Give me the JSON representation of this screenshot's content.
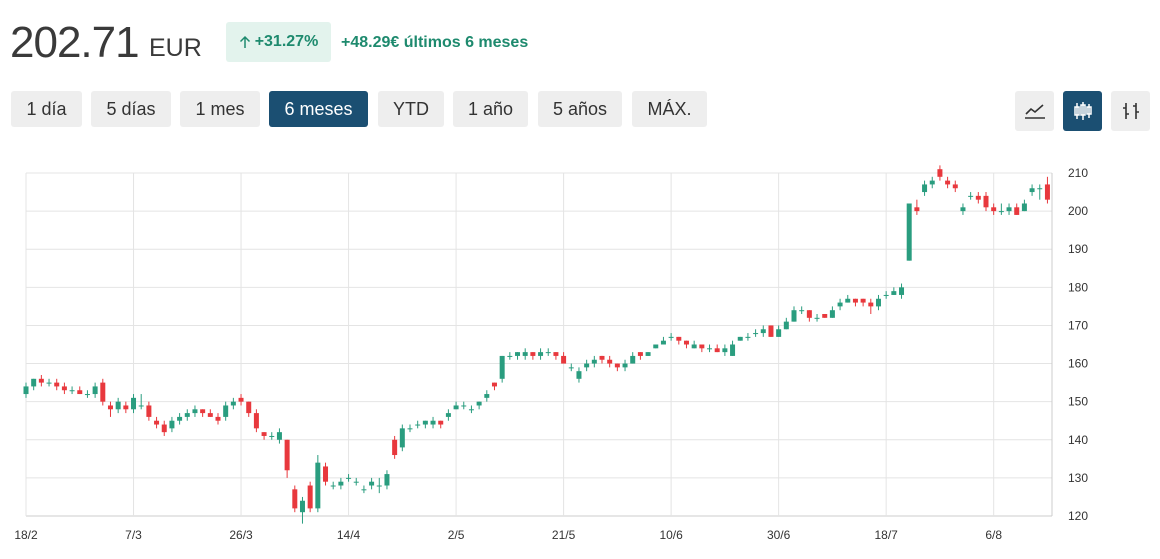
{
  "header": {
    "price": "202.71",
    "currency": "EUR",
    "change_pct": "+31.27%",
    "change_abs": "+48.29€ últimos 6 meses"
  },
  "ranges": [
    "1 día",
    "5 días",
    "1 mes",
    "6 meses",
    "YTD",
    "1 año",
    "5 años",
    "MÁX."
  ],
  "active_range": 3,
  "chart_data": {
    "type": "candlestick",
    "up_color": "#2a9d7f",
    "down_color": "#e8383d",
    "grid": true,
    "categories": [
      "18/2",
      null,
      null,
      null,
      null,
      null,
      null,
      null,
      null,
      null,
      null,
      null,
      null,
      null,
      "7/3",
      null,
      null,
      null,
      null,
      null,
      null,
      null,
      null,
      null,
      null,
      null,
      null,
      null,
      "26/3",
      null,
      null,
      null,
      null,
      null,
      null,
      null,
      null,
      null,
      null,
      null,
      null,
      null,
      "14/4",
      null,
      null,
      null,
      null,
      null,
      null,
      null,
      null,
      null,
      null,
      null,
      null,
      null,
      "2/5",
      null,
      null,
      null,
      null,
      null,
      null,
      null,
      null,
      null,
      null,
      null,
      null,
      null,
      "21/5",
      null,
      null,
      null,
      null,
      null,
      null,
      null,
      null,
      null,
      null,
      null,
      null,
      null,
      "10/6",
      null,
      null,
      null,
      null,
      null,
      null,
      null,
      null,
      null,
      null,
      null,
      null,
      null,
      "30/6",
      null,
      null,
      null,
      null,
      null,
      null,
      null,
      null,
      null,
      null,
      null,
      null,
      null,
      "18/7",
      null,
      null,
      null,
      null,
      null,
      null,
      null,
      null,
      null,
      null,
      null,
      null,
      null,
      "6/8",
      null,
      null,
      null,
      null,
      null,
      null,
      null
    ],
    "open": [
      152,
      154,
      156,
      155,
      155,
      154,
      153,
      153,
      152,
      152,
      155,
      149,
      148,
      149,
      148,
      149,
      149,
      145,
      144,
      143,
      145,
      146,
      147,
      148,
      147,
      146,
      146,
      149,
      151,
      150,
      147,
      142,
      141,
      140,
      140,
      127,
      121,
      128,
      122,
      133,
      128,
      128,
      130,
      129,
      127,
      128,
      128,
      128,
      140,
      138,
      143,
      144,
      144,
      144,
      145,
      146,
      148,
      149,
      148,
      149,
      151,
      155,
      156,
      162,
      162,
      162,
      163,
      162,
      163,
      163,
      162,
      159,
      156,
      159,
      160,
      162,
      161,
      160,
      159,
      160,
      163,
      162,
      164,
      165,
      167,
      167,
      166,
      164,
      165,
      164,
      164,
      163,
      162,
      166,
      167,
      168,
      168,
      170,
      167,
      169,
      171,
      174,
      174,
      172,
      173,
      172,
      175,
      176,
      177,
      177,
      176,
      175,
      178,
      178,
      178,
      187,
      201,
      205,
      207,
      211,
      208,
      207,
      200,
      204,
      204,
      204,
      201,
      200,
      200,
      201,
      200,
      205,
      206,
      207
    ],
    "high": [
      155,
      156,
      157,
      156,
      156,
      155,
      154,
      154,
      153,
      155,
      156,
      150,
      151,
      150,
      152,
      152,
      150,
      146,
      145,
      146,
      147,
      148,
      149,
      148,
      148,
      147,
      150,
      151,
      152,
      150,
      148,
      142,
      142,
      143,
      140,
      128,
      125,
      129,
      136,
      134,
      129,
      130,
      131,
      130,
      128,
      130,
      130,
      132,
      141,
      144,
      144,
      145,
      145,
      146,
      145,
      148,
      150,
      150,
      149,
      150,
      153,
      155,
      162,
      163,
      163,
      164,
      163,
      164,
      164,
      163,
      163,
      160,
      159,
      161,
      162,
      162,
      162,
      160,
      161,
      163,
      163,
      163,
      165,
      167,
      168,
      167,
      166,
      166,
      165,
      165,
      165,
      165,
      166,
      167,
      168,
      169,
      170,
      170,
      170,
      172,
      175,
      175,
      174,
      173,
      173,
      175,
      177,
      178,
      177,
      177,
      177,
      178,
      179,
      180,
      181,
      202,
      203,
      208,
      209,
      212,
      209,
      208,
      202,
      205,
      205,
      205,
      202,
      202,
      202,
      202,
      203,
      207,
      207,
      209
    ],
    "low": [
      151,
      153,
      154,
      154,
      153,
      152,
      152,
      152,
      151,
      151,
      149,
      146,
      147,
      147,
      147,
      148,
      145,
      143,
      141,
      142,
      144,
      145,
      146,
      146,
      146,
      144,
      145,
      148,
      149,
      146,
      142,
      140,
      140,
      139,
      130,
      121,
      118,
      121,
      121,
      128,
      127,
      127,
      129,
      128,
      126,
      127,
      126,
      127,
      135,
      137,
      142,
      143,
      143,
      143,
      143,
      145,
      148,
      148,
      147,
      148,
      150,
      153,
      155,
      161,
      161,
      161,
      161,
      161,
      162,
      161,
      160,
      158,
      155,
      158,
      159,
      160,
      159,
      158,
      158,
      160,
      161,
      162,
      164,
      165,
      166,
      165,
      164,
      164,
      163,
      163,
      163,
      162,
      162,
      166,
      166,
      167,
      167,
      167,
      167,
      169,
      171,
      173,
      171,
      171,
      172,
      172,
      174,
      176,
      175,
      175,
      173,
      174,
      177,
      178,
      177,
      187,
      199,
      204,
      206,
      208,
      206,
      205,
      199,
      203,
      202,
      200,
      199,
      199,
      199,
      199,
      200,
      204,
      203,
      202
    ],
    "close": [
      154,
      156,
      155,
      155,
      154,
      153,
      153,
      152,
      152,
      154,
      150,
      148,
      150,
      148,
      151,
      149,
      146,
      144,
      142,
      145,
      146,
      147,
      148,
      147,
      146,
      145,
      149,
      150,
      150,
      147,
      143,
      141,
      141,
      142,
      132,
      122,
      124,
      122,
      134,
      129,
      128,
      129,
      130,
      129,
      127,
      129,
      128,
      131,
      136,
      143,
      143,
      144,
      145,
      145,
      144,
      147,
      149,
      149,
      148,
      150,
      152,
      154,
      162,
      162,
      163,
      163,
      162,
      163,
      163,
      162,
      160,
      159,
      158,
      160,
      161,
      161,
      160,
      159,
      160,
      162,
      162,
      163,
      165,
      166,
      167,
      166,
      165,
      165,
      164,
      164,
      163,
      164,
      165,
      167,
      167,
      168,
      169,
      167,
      169,
      171,
      174,
      174,
      172,
      172,
      172,
      174,
      176,
      177,
      176,
      176,
      175,
      177,
      178,
      179,
      180,
      202,
      200,
      207,
      208,
      209,
      207,
      206,
      201,
      204,
      203,
      201,
      200,
      200,
      201,
      199,
      202,
      206,
      206,
      203
    ],
    "ylim": [
      120,
      210
    ],
    "yticks": [
      120,
      130,
      140,
      150,
      160,
      170,
      180,
      190,
      200,
      210
    ]
  }
}
